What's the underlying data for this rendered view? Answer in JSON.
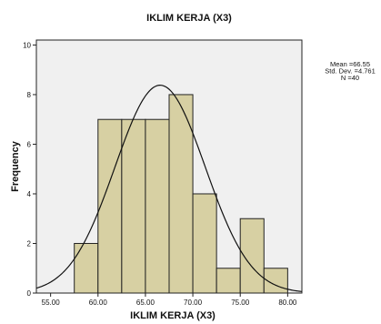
{
  "chart_data": {
    "type": "histogram",
    "title": "IKLIM KERJA (X3)",
    "xlabel": "IKLIM KERJA (X3)",
    "ylabel": "Frequency",
    "xlim": [
      53.5,
      81.5
    ],
    "ylim": [
      0,
      10.2
    ],
    "x_ticks": [
      55,
      60,
      65,
      70,
      75,
      80
    ],
    "x_tick_labels": [
      "55.00",
      "60.00",
      "65.00",
      "70.00",
      "75.00",
      "80.00"
    ],
    "y_ticks": [
      0,
      2,
      4,
      6,
      8,
      10
    ],
    "y_tick_labels": [
      "0",
      "2",
      "4",
      "6",
      "8",
      "10"
    ],
    "bins": [
      {
        "start": 57.5,
        "end": 60.0,
        "count": 2
      },
      {
        "start": 60.0,
        "end": 62.5,
        "count": 7
      },
      {
        "start": 62.5,
        "end": 65.0,
        "count": 7
      },
      {
        "start": 65.0,
        "end": 67.5,
        "count": 7
      },
      {
        "start": 67.5,
        "end": 70.0,
        "count": 8
      },
      {
        "start": 70.0,
        "end": 72.5,
        "count": 4
      },
      {
        "start": 72.5,
        "end": 75.0,
        "count": 1
      },
      {
        "start": 75.0,
        "end": 77.5,
        "count": 3
      },
      {
        "start": 77.5,
        "end": 80.0,
        "count": 1
      }
    ],
    "normal_curve": {
      "mean": 66.55,
      "std_dev": 4.761,
      "n": 40,
      "bin_width": 2.5
    },
    "stats_lines": [
      "Mean =66.55",
      "Std. Dev. =4.761",
      "N =40"
    ],
    "colors": {
      "bar_fill": "#d7d0a3",
      "bar_stroke": "#222222",
      "plot_background": "#f0f0f0",
      "curve": "#111111",
      "frame": "#222222"
    }
  }
}
